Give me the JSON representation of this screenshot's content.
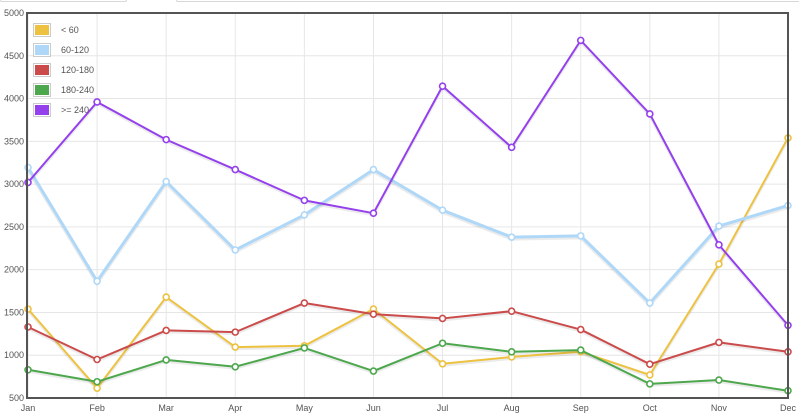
{
  "top_inputs": [
    {
      "value": ""
    },
    {
      "value": ""
    }
  ],
  "chart_data": {
    "type": "line",
    "title": "",
    "xlabel": "",
    "ylabel": "",
    "categories": [
      "Jan",
      "Feb",
      "Mar",
      "Apr",
      "May",
      "Jun",
      "Jul",
      "Aug",
      "Sep",
      "Oct",
      "Nov",
      "Dec"
    ],
    "ylim": [
      500,
      5000
    ],
    "yticks": [
      500,
      1000,
      1500,
      2000,
      2500,
      3000,
      3500,
      4000,
      4500,
      5000
    ],
    "grid": true,
    "legend_position": "top-left inside",
    "series": [
      {
        "name": "< 60",
        "color": "#edc240",
        "values": [
          1540,
          615,
          1680,
          1095,
          1110,
          1540,
          900,
          980,
          1040,
          770,
          2065,
          3540
        ]
      },
      {
        "name": "60-120",
        "color": "#afd8f8",
        "values": [
          3195,
          1865,
          3030,
          2230,
          2640,
          3170,
          2695,
          2380,
          2395,
          1610,
          2510,
          2750
        ]
      },
      {
        "name": "120-180",
        "color": "#cb4b4b",
        "values": [
          1330,
          950,
          1290,
          1270,
          1610,
          1480,
          1430,
          1515,
          1300,
          895,
          1150,
          1040
        ]
      },
      {
        "name": "180-240",
        "color": "#4da74d",
        "values": [
          830,
          690,
          945,
          865,
          1085,
          815,
          1140,
          1040,
          1060,
          665,
          710,
          585
        ]
      },
      {
        "name": ">= 240",
        "color": "#9440ed",
        "values": [
          3020,
          3960,
          3520,
          3170,
          2810,
          2660,
          4145,
          3430,
          4680,
          3820,
          2290,
          1350
        ]
      }
    ]
  }
}
